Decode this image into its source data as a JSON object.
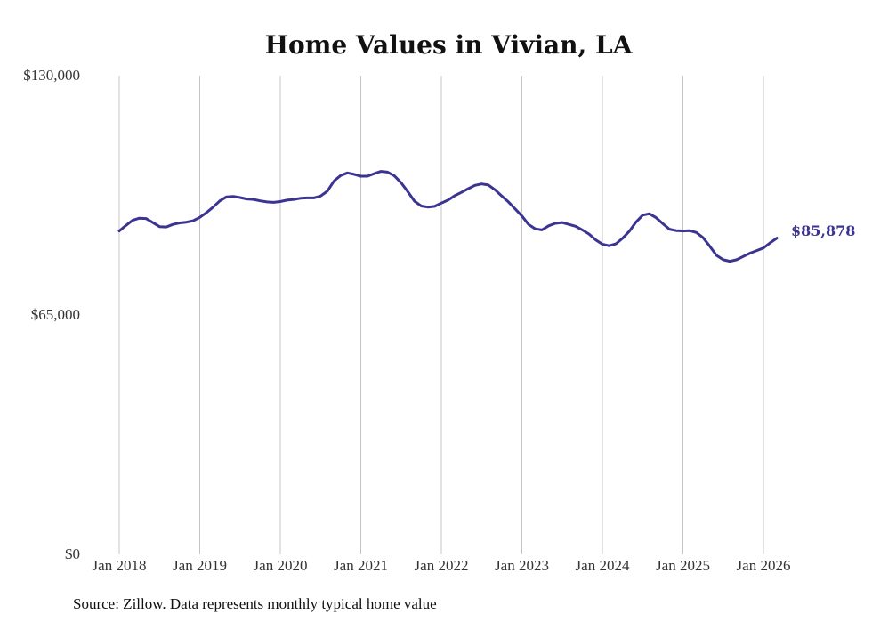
{
  "chart_data": {
    "type": "line",
    "title": "Home Values in Vivian, LA",
    "xlabel": "",
    "ylabel": "",
    "ylim": [
      0,
      130000
    ],
    "yticks": [
      "$130,000",
      "$65,000",
      "$0"
    ],
    "ytick_values": [
      130000,
      65000,
      0
    ],
    "xticks": [
      "Jan 2018",
      "Jan 2019",
      "Jan 2020",
      "Jan 2021",
      "Jan 2022",
      "Jan 2023",
      "Jan 2024",
      "Jan 2025",
      "Jan 2026"
    ],
    "xtick_years": [
      2018,
      2019,
      2020,
      2021,
      2022,
      2023,
      2024,
      2025,
      2026
    ],
    "grid": "vertical",
    "series": [
      {
        "name": "Typical home value",
        "color": "#3c3491",
        "x": [
          2018.0,
          2018.083,
          2018.167,
          2018.25,
          2018.333,
          2018.417,
          2018.5,
          2018.583,
          2018.667,
          2018.75,
          2018.833,
          2018.917,
          2019.0,
          2019.083,
          2019.167,
          2019.25,
          2019.333,
          2019.417,
          2019.5,
          2019.583,
          2019.667,
          2019.75,
          2019.833,
          2019.917,
          2020.0,
          2020.083,
          2020.167,
          2020.25,
          2020.333,
          2020.417,
          2020.5,
          2020.583,
          2020.667,
          2020.75,
          2020.833,
          2020.917,
          2021.0,
          2021.083,
          2021.167,
          2021.25,
          2021.333,
          2021.417,
          2021.5,
          2021.583,
          2021.667,
          2021.75,
          2021.833,
          2021.917,
          2022.0,
          2022.083,
          2022.167,
          2022.25,
          2022.333,
          2022.417,
          2022.5,
          2022.583,
          2022.667,
          2022.75,
          2022.833,
          2022.917,
          2023.0,
          2023.083,
          2023.167,
          2023.25,
          2023.333,
          2023.417,
          2023.5,
          2023.583,
          2023.667,
          2023.75,
          2023.833,
          2023.917,
          2024.0,
          2024.083,
          2024.167,
          2024.25,
          2024.333,
          2024.417,
          2024.5,
          2024.583,
          2024.667,
          2024.75,
          2024.833,
          2024.917,
          2025.0,
          2025.083,
          2025.167,
          2025.25,
          2025.333,
          2025.417,
          2025.5,
          2025.583,
          2025.667,
          2025.75,
          2025.833,
          2025.917,
          2026.0,
          2026.083,
          2026.167
        ],
        "values": [
          87800,
          89300,
          90700,
          91300,
          91200,
          90100,
          89000,
          88900,
          89600,
          90000,
          90200,
          90600,
          91500,
          92800,
          94300,
          96000,
          97100,
          97200,
          96900,
          96500,
          96400,
          96000,
          95700,
          95600,
          95800,
          96200,
          96400,
          96700,
          96800,
          96800,
          97300,
          98600,
          101400,
          102900,
          103600,
          103200,
          102700,
          102700,
          103400,
          104000,
          103800,
          102800,
          100900,
          98500,
          95900,
          94600,
          94300,
          94500,
          95400,
          96200,
          97400,
          98300,
          99300,
          100200,
          100600,
          100300,
          99000,
          97300,
          95700,
          93800,
          91900,
          89600,
          88400,
          88100,
          89200,
          89900,
          90100,
          89600,
          89100,
          88100,
          87000,
          85400,
          84200,
          83800,
          84300,
          85800,
          87700,
          90200,
          92100,
          92500,
          91400,
          89800,
          88300,
          87900,
          87800,
          87900,
          87400,
          86000,
          83700,
          81200,
          80000,
          79600,
          80000,
          80900,
          81800,
          82500,
          83200,
          84600,
          85878
        ]
      }
    ],
    "end_label": "$85,878",
    "source": "Source: Zillow. Data represents monthly typical home value"
  }
}
